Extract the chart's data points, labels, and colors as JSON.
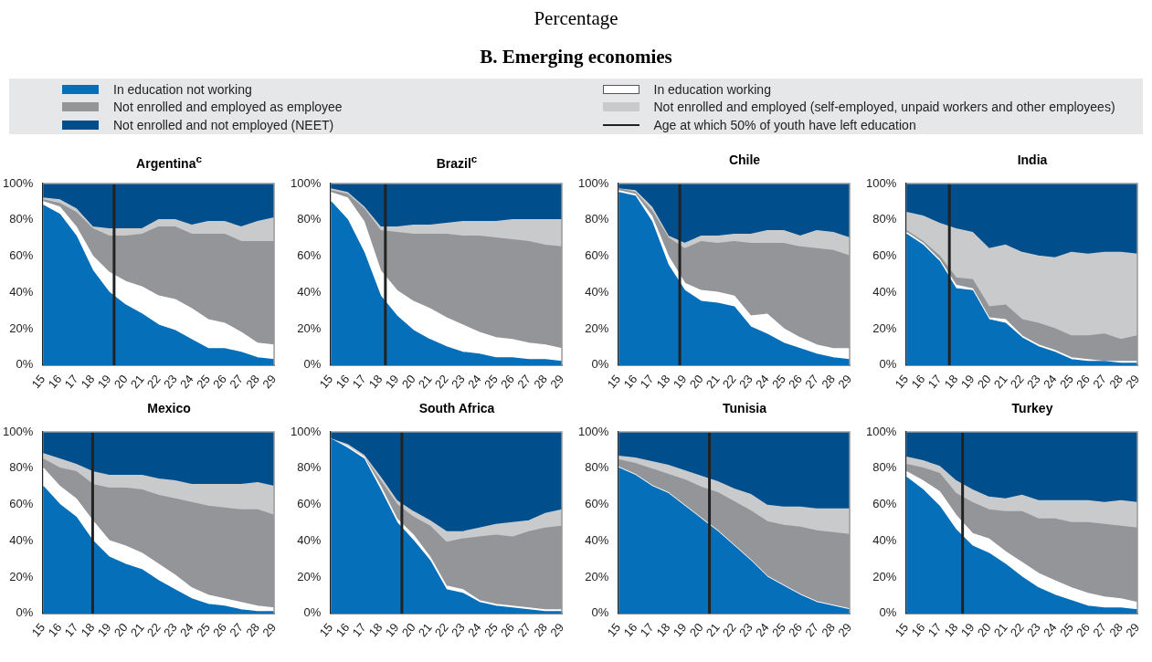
{
  "chart_data": [
    {
      "type": "area",
      "title": "Argentina$^{c}$",
      "annotations": [
        "Percentage",
        "B. Emerging economies"
      ],
      "legend": "top",
      "stacked": true,
      "x": [
        15,
        16,
        17,
        18,
        19,
        20,
        21,
        22,
        23,
        24,
        25,
        26,
        27,
        28,
        29
      ],
      "xlim": [
        15,
        29
      ],
      "xticks": [
        15,
        16,
        17,
        18,
        19,
        20,
        21,
        22,
        23,
        24,
        25,
        26,
        27,
        28,
        29
      ],
      "ylim": [
        0,
        100
      ],
      "yticks": [
        {
          "value": 0,
          "label": "0%"
        },
        {
          "value": 20,
          "label": "20%"
        },
        {
          "value": 40,
          "label": "40%"
        },
        {
          "value": 60,
          "label": "60%"
        },
        {
          "value": 80,
          "label": "80%"
        },
        {
          "value": 100,
          "label": "100%"
        }
      ],
      "ref_lines": [
        {
          "axis": "x",
          "value": 19.3,
          "label": "Age at which 50% of youth have left education",
          "color": "#222222"
        }
      ],
      "series": [
        {
          "name": "In education not working",
          "color": "#056fba",
          "values": [
            88,
            83,
            71,
            52,
            40,
            33,
            28,
            22,
            19,
            14,
            9,
            9,
            7,
            4,
            3
          ]
        },
        {
          "name": "In education working",
          "color": "#ffffff",
          "values": [
            2,
            4,
            5,
            8,
            11,
            13,
            15,
            16,
            17,
            17,
            16,
            14,
            11,
            8,
            8
          ]
        },
        {
          "name": "Not enrolled and employed as employee",
          "color": "#939598",
          "values": [
            1,
            2,
            8,
            15,
            20,
            25,
            29,
            38,
            40,
            41,
            47,
            49,
            50,
            56,
            57
          ]
        },
        {
          "name": "Not enrolled and employed (self-employed, unpaid workers and other employees)",
          "color": "#c9cacc",
          "values": [
            1,
            2,
            2,
            1,
            4,
            4,
            3,
            4,
            4,
            5,
            7,
            7,
            8,
            11,
            13
          ]
        },
        {
          "name": "Not enrolled and not employed (NEET)",
          "color": "#004f8c",
          "values": [
            8,
            9,
            14,
            24,
            25,
            25,
            25,
            20,
            20,
            23,
            21,
            21,
            24,
            21,
            19
          ]
        }
      ]
    },
    {
      "type": "area",
      "title": "Brazil$^{c}$",
      "stacked": true,
      "x": [
        15,
        16,
        17,
        18,
        19,
        20,
        21,
        22,
        23,
        24,
        25,
        26,
        27,
        28,
        29
      ],
      "xlim": [
        15,
        29
      ],
      "xticks": [
        15,
        16,
        17,
        18,
        19,
        20,
        21,
        22,
        23,
        24,
        25,
        26,
        27,
        28,
        29
      ],
      "ylim": [
        0,
        100
      ],
      "yticks": [
        {
          "value": 0,
          "label": "0%"
        },
        {
          "value": 20,
          "label": "20%"
        },
        {
          "value": 40,
          "label": "40%"
        },
        {
          "value": 60,
          "label": "60%"
        },
        {
          "value": 80,
          "label": "80%"
        },
        {
          "value": 100,
          "label": "100%"
        }
      ],
      "ref_lines": [
        {
          "axis": "x",
          "value": 18.3,
          "color": "#222222"
        }
      ],
      "series": [
        {
          "color": "#056fba",
          "values": [
            90,
            80,
            62,
            38,
            27,
            19,
            14,
            10,
            7,
            6,
            4,
            4,
            3,
            3,
            2
          ]
        },
        {
          "color": "#ffffff",
          "values": [
            5,
            12,
            17,
            14,
            14,
            16,
            17,
            16,
            15,
            12,
            11,
            10,
            9,
            8,
            7
          ]
        },
        {
          "color": "#939598",
          "values": [
            1,
            2,
            7,
            22,
            32,
            37,
            41,
            46,
            49,
            53,
            55,
            55,
            56,
            55,
            56
          ]
        },
        {
          "color": "#c9cacc",
          "values": [
            1,
            1,
            1,
            2,
            3,
            5,
            5,
            6,
            8,
            8,
            9,
            11,
            12,
            14,
            15
          ]
        },
        {
          "color": "#004f8c",
          "values": [
            3,
            5,
            13,
            24,
            24,
            23,
            23,
            22,
            21,
            21,
            21,
            20,
            20,
            20,
            20
          ]
        }
      ]
    },
    {
      "type": "area",
      "title": "Chile",
      "stacked": true,
      "x": [
        15,
        16,
        17,
        18,
        19,
        20,
        21,
        22,
        23,
        24,
        25,
        26,
        27,
        28,
        29
      ],
      "xlim": [
        15,
        29
      ],
      "xticks": [
        15,
        16,
        17,
        18,
        19,
        20,
        21,
        22,
        23,
        24,
        25,
        26,
        27,
        28,
        29
      ],
      "ylim": [
        0,
        100
      ],
      "yticks": [
        {
          "value": 0,
          "label": "0%"
        },
        {
          "value": 20,
          "label": "20%"
        },
        {
          "value": 40,
          "label": "40%"
        },
        {
          "value": 60,
          "label": "60%"
        },
        {
          "value": 80,
          "label": "80%"
        },
        {
          "value": 100,
          "label": "100%"
        }
      ],
      "ref_lines": [
        {
          "axis": "x",
          "value": 18.7,
          "color": "#222222"
        }
      ],
      "series": [
        {
          "color": "#056fba",
          "values": [
            95,
            93,
            79,
            55,
            41,
            35,
            34,
            32,
            21,
            17,
            12,
            9,
            6,
            4,
            3
          ]
        },
        {
          "color": "#ffffff",
          "values": [
            1,
            1,
            3,
            5,
            4,
            6,
            6,
            6,
            6,
            11,
            8,
            6,
            5,
            5,
            6
          ]
        },
        {
          "color": "#939598",
          "values": [
            1,
            1,
            3,
            10,
            19,
            27,
            27,
            30,
            40,
            39,
            47,
            50,
            53,
            54,
            51
          ]
        },
        {
          "color": "#c9cacc",
          "values": [
            0,
            1,
            2,
            1,
            3,
            3,
            4,
            4,
            5,
            7,
            7,
            6,
            10,
            10,
            10
          ]
        },
        {
          "color": "#004f8c",
          "values": [
            3,
            4,
            13,
            29,
            33,
            29,
            29,
            28,
            28,
            26,
            26,
            29,
            26,
            27,
            30
          ]
        }
      ]
    },
    {
      "type": "area",
      "title": "India",
      "stacked": true,
      "x": [
        15,
        16,
        17,
        18,
        19,
        20,
        21,
        22,
        23,
        24,
        25,
        26,
        27,
        28,
        29
      ],
      "xlim": [
        15,
        29
      ],
      "xticks": [
        15,
        16,
        17,
        18,
        19,
        20,
        21,
        22,
        23,
        24,
        25,
        26,
        27,
        28,
        29
      ],
      "ylim": [
        0,
        100
      ],
      "yticks": [
        {
          "value": 0,
          "label": "0%"
        },
        {
          "value": 20,
          "label": "20%"
        },
        {
          "value": 40,
          "label": "40%"
        },
        {
          "value": 60,
          "label": "60%"
        },
        {
          "value": 80,
          "label": "80%"
        },
        {
          "value": 100,
          "label": "100%"
        }
      ],
      "ref_lines": [
        {
          "axis": "x",
          "value": 17.6,
          "color": "#222222"
        }
      ],
      "series": [
        {
          "color": "#056fba",
          "values": [
            72,
            66,
            57,
            42,
            41,
            25,
            23,
            15,
            10,
            7,
            3,
            2,
            2,
            1,
            1
          ]
        },
        {
          "color": "#ffffff",
          "values": [
            1,
            1,
            1,
            2,
            1,
            1,
            2,
            1,
            1,
            1,
            1,
            1,
            0,
            1,
            1
          ]
        },
        {
          "color": "#939598",
          "values": [
            1,
            1,
            2,
            4,
            5,
            6,
            8,
            9,
            12,
            12,
            12,
            13,
            15,
            12,
            14
          ]
        },
        {
          "color": "#c9cacc",
          "values": [
            10,
            14,
            18,
            27,
            26,
            32,
            33,
            37,
            37,
            39,
            46,
            45,
            45,
            48,
            45
          ]
        },
        {
          "color": "#004f8c",
          "values": [
            16,
            18,
            22,
            25,
            27,
            36,
            34,
            38,
            40,
            41,
            38,
            39,
            38,
            38,
            39
          ]
        }
      ]
    },
    {
      "type": "area",
      "title": "Mexico",
      "stacked": true,
      "x": [
        15,
        16,
        17,
        18,
        19,
        20,
        21,
        22,
        23,
        24,
        25,
        26,
        27,
        28,
        29
      ],
      "xlim": [
        15,
        29
      ],
      "xticks": [
        15,
        16,
        17,
        18,
        19,
        20,
        21,
        22,
        23,
        24,
        25,
        26,
        27,
        28,
        29
      ],
      "ylim": [
        0,
        100
      ],
      "yticks": [
        {
          "value": 0,
          "label": "0%"
        },
        {
          "value": 20,
          "label": "20%"
        },
        {
          "value": 40,
          "label": "40%"
        },
        {
          "value": 60,
          "label": "60%"
        },
        {
          "value": 80,
          "label": "80%"
        },
        {
          "value": 100,
          "label": "100%"
        }
      ],
      "ref_lines": [
        {
          "axis": "x",
          "value": 18,
          "color": "#222222"
        }
      ],
      "series": [
        {
          "color": "#056fba",
          "values": [
            70,
            60,
            53,
            40,
            31,
            27,
            24,
            18,
            13,
            8,
            5,
            4,
            2,
            1,
            1
          ]
        },
        {
          "color": "#ffffff",
          "values": [
            10,
            10,
            10,
            11,
            9,
            10,
            9,
            9,
            8,
            6,
            5,
            4,
            4,
            3,
            2
          ]
        },
        {
          "color": "#939598",
          "values": [
            5,
            10,
            15,
            20,
            29,
            32,
            35,
            38,
            42,
            47,
            49,
            50,
            51,
            53,
            51
          ]
        },
        {
          "color": "#c9cacc",
          "values": [
            3,
            5,
            4,
            7,
            7,
            7,
            8,
            9,
            10,
            10,
            12,
            13,
            14,
            15,
            16
          ]
        },
        {
          "color": "#004f8c",
          "values": [
            12,
            15,
            18,
            22,
            24,
            24,
            24,
            26,
            27,
            29,
            29,
            29,
            29,
            28,
            30
          ]
        }
      ]
    },
    {
      "type": "area",
      "title": "South Africa",
      "stacked": true,
      "x": [
        15,
        16,
        17,
        18,
        19,
        20,
        21,
        22,
        23,
        24,
        25,
        26,
        27,
        28,
        29
      ],
      "xlim": [
        15,
        29
      ],
      "xticks": [
        15,
        16,
        17,
        18,
        19,
        20,
        21,
        22,
        23,
        24,
        25,
        26,
        27,
        28,
        29
      ],
      "ylim": [
        0,
        100
      ],
      "yticks": [
        {
          "value": 0,
          "label": "0%"
        },
        {
          "value": 20,
          "label": "20%"
        },
        {
          "value": 40,
          "label": "40%"
        },
        {
          "value": 60,
          "label": "60%"
        },
        {
          "value": 80,
          "label": "80%"
        },
        {
          "value": 100,
          "label": "100%"
        }
      ],
      "ref_lines": [
        {
          "axis": "x",
          "value": 19.3,
          "color": "#222222"
        }
      ],
      "series": [
        {
          "color": "#056fba",
          "values": [
            96,
            91,
            85,
            68,
            50,
            40,
            29,
            13,
            11,
            6,
            4,
            3,
            2,
            1,
            1
          ]
        },
        {
          "color": "#ffffff",
          "values": [
            0,
            1,
            1,
            2,
            2,
            3,
            2,
            2,
            2,
            1,
            1,
            1,
            1,
            1,
            1
          ]
        },
        {
          "color": "#939598",
          "values": [
            0,
            0,
            0,
            3,
            8,
            10,
            17,
            24,
            28,
            35,
            38,
            38,
            42,
            45,
            46
          ]
        },
        {
          "color": "#c9cacc",
          "values": [
            0,
            1,
            1,
            2,
            2,
            3,
            3,
            6,
            4,
            5,
            6,
            8,
            6,
            8,
            9
          ]
        },
        {
          "color": "#004f8c",
          "values": [
            4,
            7,
            13,
            25,
            38,
            44,
            49,
            55,
            55,
            53,
            51,
            50,
            49,
            45,
            43
          ]
        }
      ]
    },
    {
      "type": "area",
      "title": "Tunisia",
      "stacked": true,
      "x": [
        15,
        16,
        17,
        18,
        19,
        20,
        21,
        22,
        23,
        24,
        25,
        26,
        27,
        28,
        29
      ],
      "xlim": [
        15,
        29
      ],
      "xticks": [
        15,
        16,
        17,
        18,
        19,
        20,
        21,
        22,
        23,
        24,
        25,
        26,
        27,
        28,
        29
      ],
      "ylim": [
        0,
        100
      ],
      "yticks": [
        {
          "value": 0,
          "label": "0%"
        },
        {
          "value": 20,
          "label": "20%"
        },
        {
          "value": 40,
          "label": "40%"
        },
        {
          "value": 60,
          "label": "60%"
        },
        {
          "value": 80,
          "label": "80%"
        },
        {
          "value": 100,
          "label": "100%"
        }
      ],
      "ref_lines": [
        {
          "axis": "x",
          "value": 20.5,
          "color": "#222222"
        }
      ],
      "series": [
        {
          "color": "#056fba",
          "values": [
            80,
            76,
            70,
            66,
            59,
            52,
            45,
            37,
            29,
            20,
            15,
            10,
            6,
            4,
            2
          ]
        },
        {
          "color": "#ffffff",
          "values": [
            0.5,
            0.5,
            0.5,
            0.5,
            0.5,
            0.5,
            0.5,
            0.5,
            0.5,
            0.5,
            0.5,
            0.5,
            0.5,
            0.5,
            0.5
          ]
        },
        {
          "color": "#939598",
          "values": [
            4,
            6,
            9,
            10,
            14,
            17,
            21,
            24,
            27,
            30,
            33,
            37,
            39,
            40,
            41
          ]
        },
        {
          "color": "#c9cacc",
          "values": [
            2,
            3,
            4,
            5,
            5,
            6,
            6,
            7,
            9,
            9,
            10,
            11,
            12,
            13,
            14
          ]
        },
        {
          "color": "#004f8c",
          "values": [
            13.5,
            14.5,
            16.5,
            18.5,
            21.5,
            24.5,
            27.5,
            31.5,
            34.5,
            40.5,
            41.5,
            41.5,
            42.5,
            42.5,
            42.5
          ]
        }
      ]
    },
    {
      "type": "area",
      "title": "Turkey",
      "stacked": true,
      "x": [
        15,
        16,
        17,
        18,
        19,
        20,
        21,
        22,
        23,
        24,
        25,
        26,
        27,
        28,
        29
      ],
      "xlim": [
        15,
        29
      ],
      "xticks": [
        15,
        16,
        17,
        18,
        19,
        20,
        21,
        22,
        23,
        24,
        25,
        26,
        27,
        28,
        29
      ],
      "ylim": [
        0,
        100
      ],
      "yticks": [
        {
          "value": 0,
          "label": "0%"
        },
        {
          "value": 20,
          "label": "20%"
        },
        {
          "value": 40,
          "label": "40%"
        },
        {
          "value": 60,
          "label": "60%"
        },
        {
          "value": 80,
          "label": "80%"
        },
        {
          "value": 100,
          "label": "100%"
        }
      ],
      "ref_lines": [
        {
          "axis": "x",
          "value": 18.4,
          "color": "#222222"
        }
      ],
      "series": [
        {
          "color": "#056fba",
          "values": [
            75,
            68,
            59,
            46,
            37,
            33,
            27,
            20,
            14,
            10,
            7,
            4,
            3,
            3,
            2
          ]
        },
        {
          "color": "#ffffff",
          "values": [
            3,
            5,
            8,
            8,
            7,
            8,
            7,
            8,
            8,
            8,
            7,
            7,
            6,
            5,
            4
          ]
        },
        {
          "color": "#939598",
          "values": [
            4,
            7,
            10,
            12,
            17,
            16,
            22,
            28,
            30,
            34,
            36,
            39,
            40,
            40,
            41
          ]
        },
        {
          "color": "#c9cacc",
          "values": [
            4,
            4,
            4,
            7,
            7,
            7,
            7,
            9,
            10,
            10,
            12,
            12,
            12,
            14,
            14
          ]
        },
        {
          "color": "#004f8c",
          "values": [
            14,
            16,
            19,
            27,
            32,
            36,
            37,
            35,
            38,
            38,
            38,
            38,
            39,
            38,
            39
          ]
        }
      ]
    }
  ]
}
